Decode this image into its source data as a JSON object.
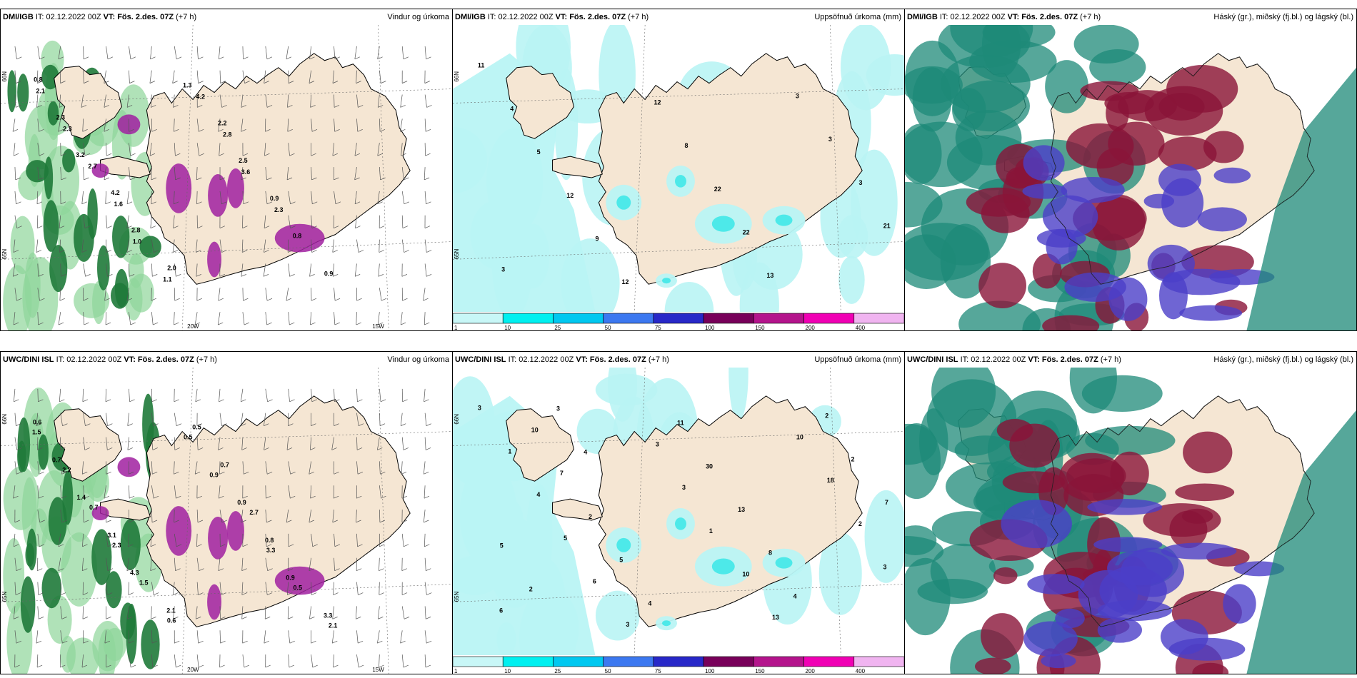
{
  "panels": [
    {
      "id": "p1",
      "model": "DMI/IGB",
      "it": "IT: 02.12.2022 00Z",
      "vt_label": "VT:",
      "vt": "Fös. 2.des. 07Z",
      "lead": "(+7 h)",
      "product": "Vindur og úrkoma",
      "type": "wind",
      "labels": [
        "0.8",
        "2.3",
        "3.2",
        "4.2",
        "2.8",
        "2.0",
        "1.3",
        "2.2",
        "2.5",
        "0.9",
        "0.8",
        "0.9",
        "2.1",
        "2.3",
        "2.7",
        "1.6",
        "1.0",
        "1.1",
        "4.2",
        "2.8",
        "3.6",
        "2.3"
      ],
      "axis": [
        "66N",
        "65N",
        "20W",
        "15W"
      ]
    },
    {
      "id": "p2",
      "model": "DMI/IGB",
      "it": "IT: 02.12.2022 00Z",
      "vt_label": "VT:",
      "vt": "Fös. 2.des. 07Z",
      "lead": "(+7 h)",
      "product": "Uppsöfnuð úrkoma (mm)",
      "type": "precip",
      "labels": [
        "11",
        "4",
        "5",
        "12",
        "9",
        "12",
        "12",
        "8",
        "22",
        "22",
        "13",
        "3",
        "3",
        "3",
        "21",
        "3"
      ],
      "axis": [
        "66N",
        "65N"
      ]
    },
    {
      "id": "p3",
      "model": "DMI/IGB",
      "it": "IT: 02.12.2022 00Z",
      "vt_label": "VT:",
      "vt": "Fös. 2.des. 07Z",
      "lead": "(+7 h)",
      "product": "Háský (gr.), miðský (fj.bl.) og lágský (bl.)",
      "type": "cloud"
    },
    {
      "id": "p4",
      "model": "UWC/DINI ISL",
      "it": "IT: 02.12.2022 00Z",
      "vt_label": "VT:",
      "vt": "Fös. 2.des. 07Z",
      "lead": "(+7 h)",
      "product": "Vindur og úrkoma",
      "type": "wind",
      "labels": [
        "0.6",
        "0.7",
        "1.4",
        "3.1",
        "4.3",
        "2.1",
        "0.5",
        "0.7",
        "0.9",
        "0.8",
        "0.9",
        "3.3",
        "1.5",
        "2.2",
        "0.7",
        "2.3",
        "1.5",
        "0.6",
        "0.5",
        "0.9",
        "2.7",
        "3.3",
        "0.5",
        "2.1"
      ],
      "axis": [
        "66N",
        "65N",
        "20W",
        "15W"
      ]
    },
    {
      "id": "p5",
      "model": "UWC/DINI ISL",
      "it": "IT: 02.12.2022 00Z",
      "vt_label": "VT:",
      "vt": "Fös. 2.des. 07Z",
      "lead": "(+7 h)",
      "product": "Uppsöfnuð úrkoma (mm)",
      "type": "precip",
      "labels": [
        "3",
        "1",
        "4",
        "5",
        "6",
        "3",
        "3",
        "3",
        "1",
        "10",
        "13",
        "10",
        "18",
        "2",
        "3",
        "6",
        "10",
        "7",
        "2",
        "5",
        "4",
        "11",
        "30",
        "13",
        "8",
        "4",
        "2",
        "2",
        "7",
        "5",
        "2",
        "3",
        "4"
      ],
      "axis": [
        "66N",
        "65N"
      ]
    },
    {
      "id": "p6",
      "model": "UWC/DINI ISL",
      "it": "IT: 02.12.2022 00Z",
      "vt_label": "VT:",
      "vt": "Fös. 2.des. 07Z",
      "lead": "(+7 h)",
      "product": "Háský (gr.), miðský (fj.bl.) og lágský (bl.)",
      "type": "cloud"
    }
  ],
  "colorbar": {
    "ticks": [
      "1",
      "10",
      "25",
      "50",
      "75",
      "100",
      "150",
      "200",
      "400"
    ],
    "colors": [
      "#c8f7f7",
      "#00f0f0",
      "#00c8f0",
      "#3c78f0",
      "#2828c8",
      "#78005a",
      "#b4148c",
      "#f000b4",
      "#f0b4f0"
    ]
  },
  "colors": {
    "land": "#f5e6d3",
    "sea": "#ffffff",
    "precip_light": "#b9f4f4",
    "precip_mid": "#40e8e8",
    "wind_green": "#1f7a3a",
    "wind_light": "#8fd69a",
    "purple": "#a020a0",
    "cloud_high": "#1e8a78",
    "cloud_mid": "#4b3fc8",
    "cloud_low": "#8a1438"
  }
}
